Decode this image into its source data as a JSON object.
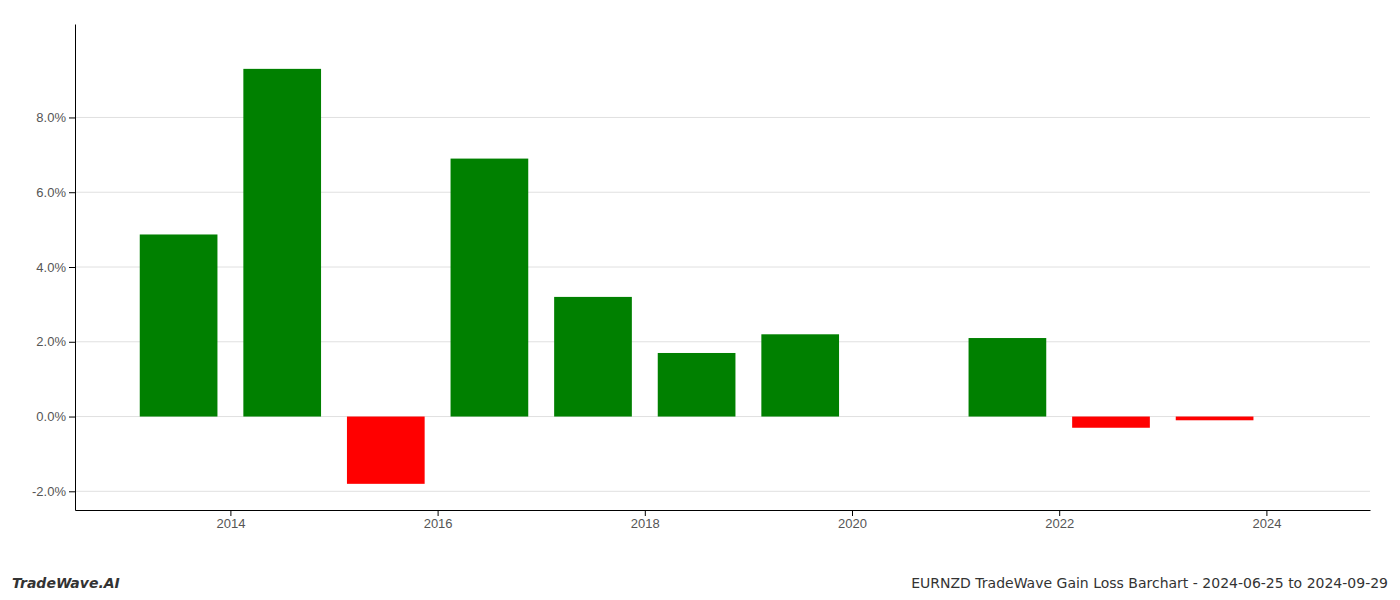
{
  "chart_data": {
    "type": "bar",
    "title": "EURNZD TradeWave Gain Loss Barchart - 2024-06-25 to 2024-09-29",
    "annotations": [
      "TradeWave.AI"
    ],
    "x": [
      2013.5,
      2014.5,
      2015.5,
      2016.5,
      2017.5,
      2018.5,
      2019.5,
      2021.5,
      2022.5,
      2023.5
    ],
    "values": [
      0.0487,
      0.093,
      -0.018,
      0.069,
      0.032,
      0.017,
      0.022,
      0.021,
      -0.003,
      -0.001
    ],
    "colors": [
      "#008000",
      "#008000",
      "#ff0000",
      "#008000",
      "#008000",
      "#008000",
      "#008000",
      "#008000",
      "#ff0000",
      "#ff0000"
    ],
    "xlim": [
      2012.5,
      2025.0
    ],
    "xticks": [
      2014,
      2016,
      2018,
      2020,
      2022,
      2024
    ],
    "ylim": [
      -0.025,
      0.105
    ],
    "yticks": [
      {
        "value": -0.02,
        "label": "-2.0%"
      },
      {
        "value": 0.0,
        "label": "0.0%"
      },
      {
        "value": 0.02,
        "label": "2.0%"
      },
      {
        "value": 0.04,
        "label": "4.0%"
      },
      {
        "value": 0.06,
        "label": "6.0%"
      },
      {
        "value": 0.08,
        "label": "8.0%"
      }
    ],
    "grid": true
  }
}
